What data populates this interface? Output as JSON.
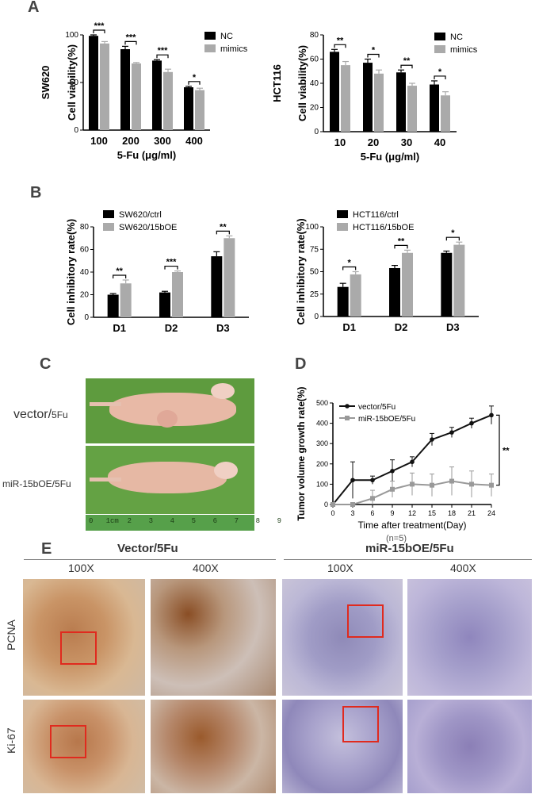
{
  "panels": {
    "A": "A",
    "B": "B",
    "C": "C",
    "D": "D",
    "E": "E"
  },
  "colors": {
    "black": "#000000",
    "gray": "#aaaaaa",
    "line_black": "#111111",
    "line_gray": "#999999",
    "box_red": "#e02a1e"
  },
  "chart_data": [
    {
      "id": "A-left",
      "type": "bar",
      "ylabel": "Cell viability(%)",
      "side_label": "SW620",
      "xlabel": "5-Fu (μg/ml)",
      "categories": [
        "100",
        "200",
        "300",
        "400"
      ],
      "ylim": [
        0,
        100
      ],
      "yticks": [
        0,
        50,
        100
      ],
      "legend": "top-right",
      "series": [
        {
          "name": "NC",
          "values": [
            99,
            85,
            73,
            45
          ],
          "err": [
            1,
            3,
            1,
            1
          ]
        },
        {
          "name": "mimics",
          "values": [
            91,
            70,
            61,
            42
          ],
          "err": [
            2,
            1,
            3,
            2
          ]
        }
      ],
      "sig": [
        "***",
        "***",
        "***",
        "*"
      ]
    },
    {
      "id": "A-right",
      "type": "bar",
      "ylabel": "Cell viability(%)",
      "side_label": "HCT116",
      "xlabel": "5-Fu (μg/ml)",
      "categories": [
        "10",
        "20",
        "30",
        "40"
      ],
      "ylim": [
        0,
        80
      ],
      "yticks": [
        0,
        20,
        40,
        60,
        80
      ],
      "legend": "top-right",
      "series": [
        {
          "name": "NC",
          "values": [
            66,
            57,
            49,
            39
          ],
          "err": [
            2,
            3,
            2,
            3
          ]
        },
        {
          "name": "mimics",
          "values": [
            55,
            48,
            38,
            30
          ],
          "err": [
            3,
            3,
            2,
            3
          ]
        }
      ],
      "sig": [
        "**",
        "*",
        "**",
        "*"
      ]
    },
    {
      "id": "B-left",
      "type": "bar",
      "ylabel": "Cell inhibitory rate(%)",
      "categories": [
        "D1",
        "D2",
        "D3"
      ],
      "ylim": [
        0,
        80
      ],
      "yticks": [
        0,
        20,
        40,
        60,
        80
      ],
      "legend": "top-left",
      "series": [
        {
          "name": "SW620/ctrl",
          "values": [
            20,
            22,
            54
          ],
          "err": [
            1,
            1,
            4
          ]
        },
        {
          "name": "SW620/15bOE",
          "values": [
            30,
            40,
            70
          ],
          "err": [
            3,
            1,
            2
          ]
        }
      ],
      "sig": [
        "**",
        "***",
        "**"
      ]
    },
    {
      "id": "B-right",
      "type": "bar",
      "ylabel": "Cell inhibitory rate(%)",
      "categories": [
        "D1",
        "D2",
        "D3"
      ],
      "ylim": [
        0,
        100
      ],
      "yticks": [
        0,
        25,
        50,
        75,
        100
      ],
      "legend": "top-left",
      "series": [
        {
          "name": "HCT116/ctrl",
          "values": [
            33,
            54,
            71
          ],
          "err": [
            4,
            3,
            2
          ]
        },
        {
          "name": "HCT116/15bOE",
          "values": [
            47,
            71,
            80
          ],
          "err": [
            3,
            3,
            3
          ]
        }
      ],
      "sig": [
        "*",
        "**",
        "*"
      ]
    },
    {
      "id": "D",
      "type": "line",
      "ylabel": "Tumor volume growth rate(%)",
      "xlabel": "Time after treatment(Day)",
      "note": "(n=5)",
      "x": [
        0,
        3,
        6,
        9,
        12,
        15,
        18,
        21,
        24
      ],
      "xlim": [
        0,
        24
      ],
      "ylim": [
        0,
        500
      ],
      "yticks": [
        0,
        100,
        200,
        300,
        400,
        500
      ],
      "legend": "top-left",
      "series": [
        {
          "name": "vector/5Fu",
          "values": [
            0,
            120,
            120,
            165,
            210,
            320,
            355,
            400,
            440
          ],
          "err": [
            0,
            90,
            20,
            55,
            25,
            30,
            25,
            25,
            45
          ]
        },
        {
          "name": "miR-15bOE/5Fu",
          "values": [
            0,
            0,
            30,
            75,
            100,
            95,
            115,
            100,
            95
          ],
          "err": [
            0,
            0,
            40,
            40,
            55,
            55,
            70,
            65,
            55
          ]
        }
      ],
      "sig": "**"
    }
  ],
  "panelC": {
    "label_top": "vector/",
    "label_top_sub": "5Fu",
    "label_bottom": "miR-15bOE/5Fu",
    "ruler_text": "0   1cm  2    3    4    5    6    7    8    9"
  },
  "panelE": {
    "group_left": "Vector/5Fu",
    "group_right": "miR-15bOE/5Fu",
    "mags": [
      "100X",
      "400X",
      "100X",
      "400X"
    ],
    "rows": [
      "PCNA",
      "Ki-67"
    ]
  }
}
